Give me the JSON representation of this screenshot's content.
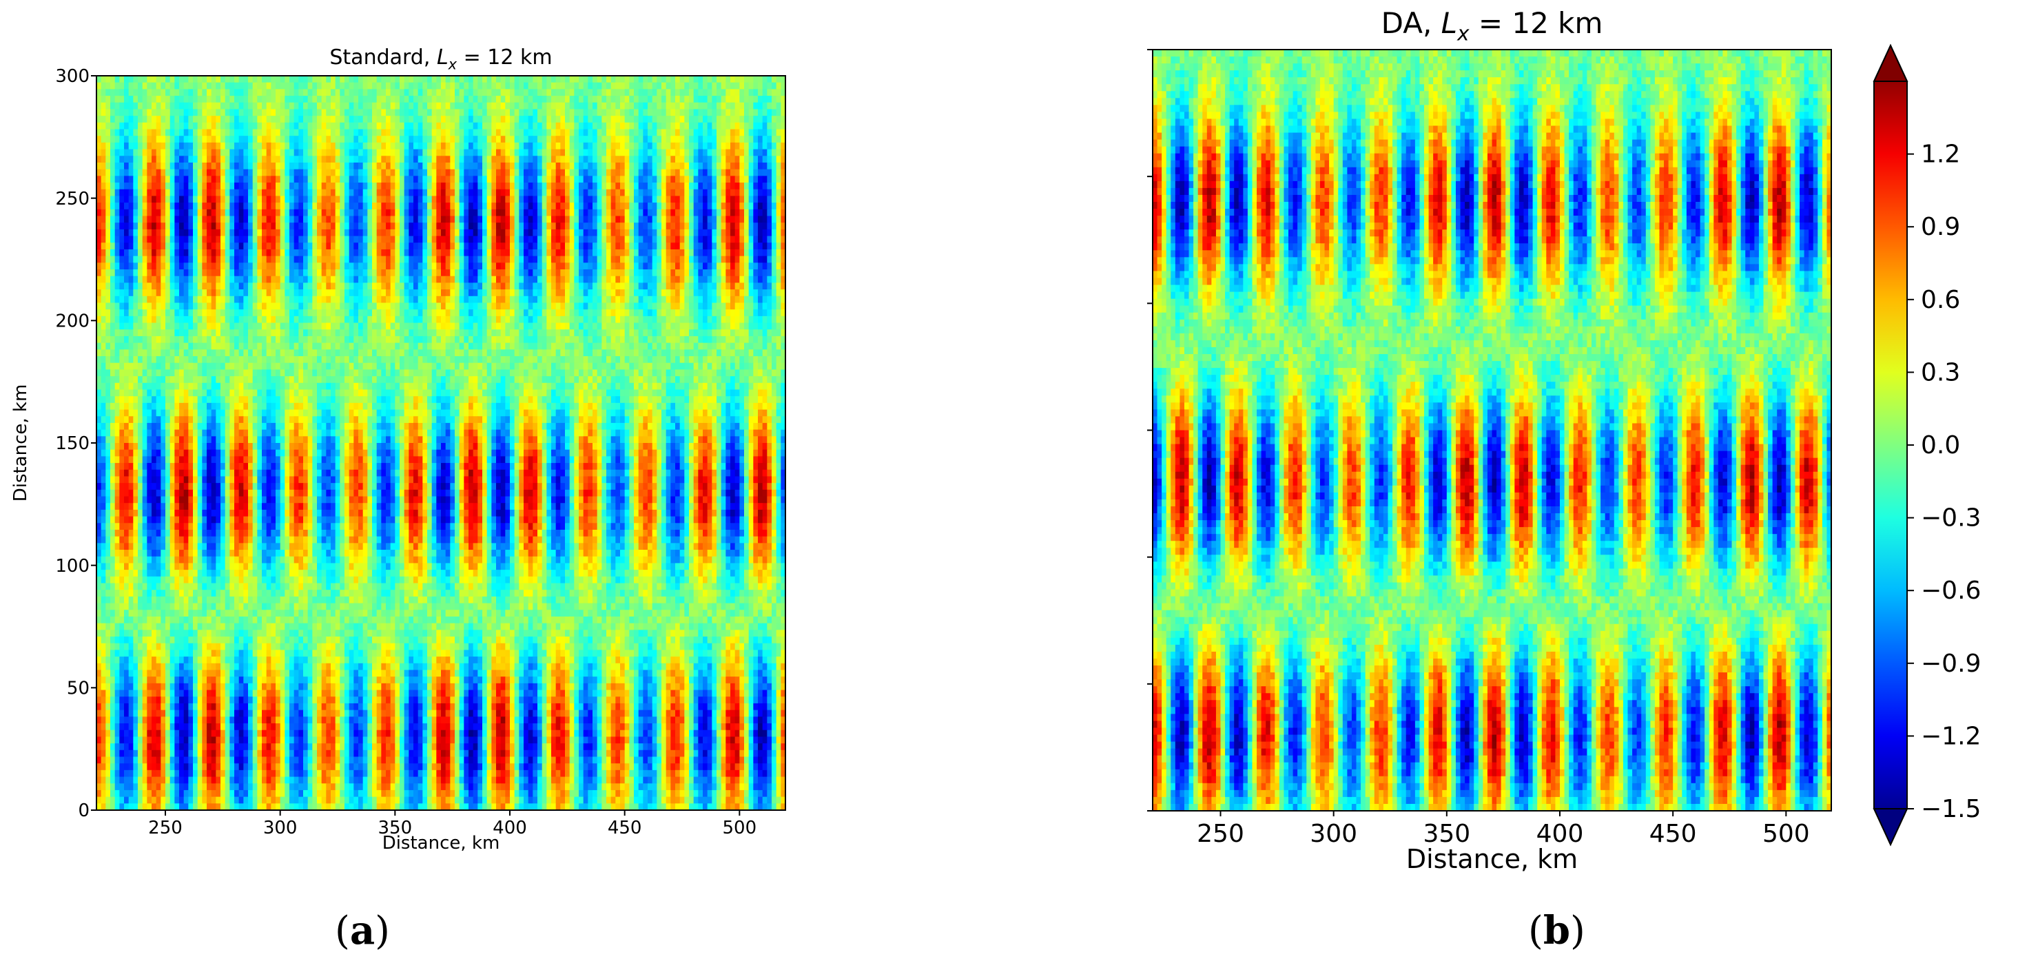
{
  "chart_data": [
    {
      "type": "heatmap",
      "panel_label": "a",
      "title": "Standard, $L_x$ = 12 km",
      "title_parts": {
        "prefix": "Standard, ",
        "var": "L",
        "sub": "x",
        "suffix": " = 12 km"
      },
      "xlabel": "Distance, km",
      "ylabel": "Distance, km",
      "xlim": [
        220,
        520
      ],
      "ylim": [
        0,
        300
      ],
      "xticks": [
        250,
        300,
        350,
        400,
        450,
        500
      ],
      "yticks": [
        0,
        50,
        100,
        150,
        200,
        250,
        300
      ],
      "pattern": {
        "field": "vertical stripes with three bands of alternating sign",
        "stripe_wavelength_km": 12,
        "band_centers_km": [
          30,
          130,
          240
        ],
        "band_signs": [
          1,
          -1,
          1
        ],
        "band_halfwidth_km": 45
      },
      "colormap": "jet",
      "vmin": -1.5,
      "vmax": 1.5,
      "grid": false
    },
    {
      "type": "heatmap",
      "panel_label": "b",
      "title": "DA, $L_x$ = 12 km",
      "title_parts": {
        "prefix": "DA, ",
        "var": "L",
        "sub": "x",
        "suffix": " = 12 km"
      },
      "xlabel": "Distance, km",
      "ylabel": "",
      "xlim": [
        220,
        520
      ],
      "ylim": [
        0,
        300
      ],
      "xticks": [
        250,
        300,
        350,
        400,
        450,
        500
      ],
      "yticks": [
        0,
        50,
        100,
        150,
        200,
        250,
        300
      ],
      "show_ytick_labels": false,
      "pattern": {
        "field": "vertical stripes with three bands of alternating sign",
        "stripe_wavelength_km": 12,
        "band_centers_km": [
          30,
          130,
          240
        ],
        "band_signs": [
          1,
          -1,
          1
        ],
        "band_halfwidth_km": 45
      },
      "colormap": "jet",
      "vmin": -1.5,
      "vmax": 1.5,
      "colorbar": {
        "ticks": [
          1.2,
          0.9,
          0.6,
          0.3,
          0.0,
          -0.3,
          -0.6,
          -0.9,
          -1.2,
          -1.5
        ],
        "tick_labels": [
          "1.2",
          "0.9",
          "0.6",
          "0.3",
          "0.0",
          "−0.3",
          "−0.6",
          "−0.9",
          "−1.2",
          "−1.5"
        ],
        "extend": "both",
        "placement": "right"
      },
      "grid": false
    }
  ],
  "captions": [
    "a",
    "b"
  ]
}
